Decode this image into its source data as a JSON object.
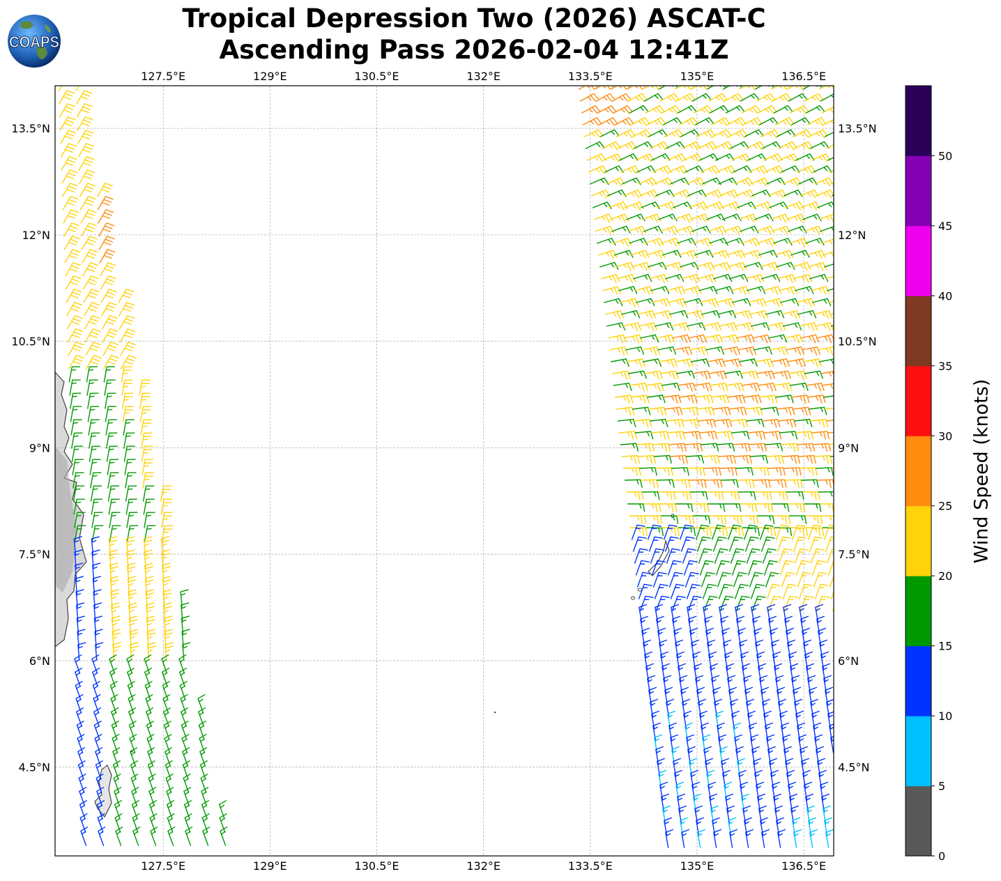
{
  "title": {
    "line1": "Tropical Depression Two (2026) ASCAT-C",
    "line2": "Ascending Pass 2026-02-04 12:41Z"
  },
  "logo": {
    "text": "COAPS"
  },
  "map": {
    "lon_range": [
      125.98,
      136.92
    ],
    "lat_range": [
      3.25,
      14.1
    ],
    "lon_ticks": [
      127.5,
      129,
      130.5,
      132,
      133.5,
      135,
      136.5
    ],
    "lon_tick_labels": [
      "127.5°E",
      "129°E",
      "130.5°E",
      "132°E",
      "133.5°E",
      "135°E",
      "136.5°E"
    ],
    "lat_ticks": [
      4.5,
      6,
      7.5,
      9,
      10.5,
      12,
      13.5
    ],
    "lat_tick_labels": [
      "4.5°N",
      "6°N",
      "7.5°N",
      "9°N",
      "10.5°N",
      "12°N",
      "13.5°N"
    ],
    "gridlines": true
  },
  "colorbar": {
    "label": "Wind Speed (knots)",
    "ticks": [
      "0",
      "5",
      "10",
      "15",
      "20",
      "25",
      "30",
      "35",
      "40",
      "45",
      "50"
    ],
    "colors": [
      "#595959",
      "#00bfff",
      "#0033ff",
      "#009900",
      "#ffd20a",
      "#ff8c0f",
      "#ff1010",
      "#7f3a22",
      "#ee00ee",
      "#8500b5",
      "#2a0058"
    ]
  }
}
